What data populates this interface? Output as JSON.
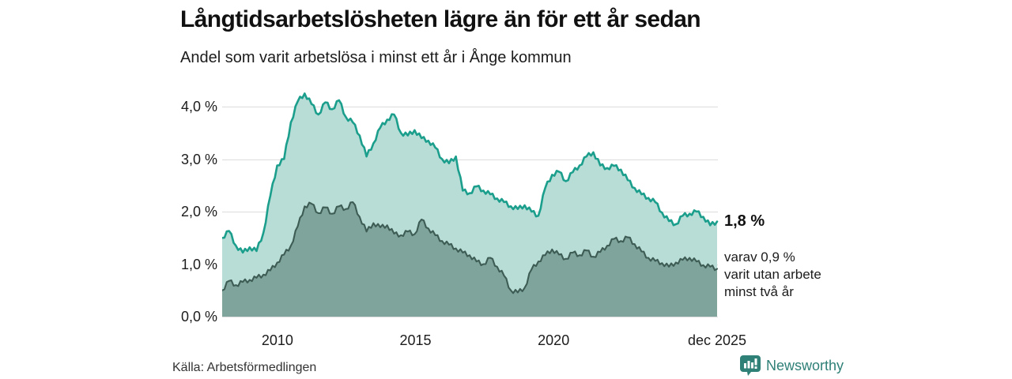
{
  "header": {
    "title": "Långtidsarbetslösheten lägre än för ett år sedan",
    "subtitle": "Andel som varit arbetslösa i minst ett år i Ånge kommun"
  },
  "chart_data": {
    "type": "area",
    "title": "Långtidsarbetslösheten lägre än för ett år sedan",
    "subtitle": "Andel som varit arbetslösa i minst ett år i Ånge kommun",
    "x_range": [
      2008.0,
      2025.92
    ],
    "ylim": [
      0,
      4.4
    ],
    "grid": "horizontal",
    "y_ticks": [
      {
        "value": 0,
        "label": "0,0 %"
      },
      {
        "value": 1,
        "label": "1,0 %"
      },
      {
        "value": 2,
        "label": "2,0 %"
      },
      {
        "value": 3,
        "label": "3,0 %"
      },
      {
        "value": 4,
        "label": "4,0 %"
      }
    ],
    "x_ticks": [
      {
        "value": 2010,
        "label": "2010"
      },
      {
        "value": 2015,
        "label": "2015"
      },
      {
        "value": 2020,
        "label": "2020"
      },
      {
        "value": 2025.92,
        "label": "dec 2025"
      }
    ],
    "series": [
      {
        "name": "Andel arbetslösa minst ett år",
        "line_color": "#1b9e8c",
        "fill_color": "#b8ddd6",
        "line_width": 2.6,
        "latest_value": "1,8 %",
        "values": [
          1.5,
          1.63,
          1.35,
          1.22,
          1.32,
          1.25,
          1.6,
          2.3,
          2.88,
          3.0,
          3.7,
          4.1,
          4.25,
          4.05,
          3.85,
          4.08,
          3.95,
          4.12,
          3.8,
          3.7,
          3.45,
          3.05,
          3.3,
          3.6,
          3.75,
          3.85,
          3.5,
          3.45,
          3.55,
          3.4,
          3.35,
          3.22,
          3.0,
          2.92,
          3.05,
          2.4,
          2.35,
          2.48,
          2.4,
          2.33,
          2.25,
          2.18,
          2.1,
          2.05,
          2.12,
          2.0,
          1.92,
          2.45,
          2.7,
          2.76,
          2.58,
          2.75,
          2.88,
          3.05,
          3.13,
          2.88,
          2.83,
          2.87,
          2.8,
          2.6,
          2.45,
          2.33,
          2.26,
          2.18,
          1.98,
          1.82,
          1.76,
          1.92,
          1.96,
          2.0,
          1.9,
          1.74,
          1.81
        ]
      },
      {
        "name": "Andel utan arbete minst två år",
        "line_color": "#3d5c54",
        "fill_color": "#7ea49b",
        "line_width": 2.1,
        "latest_value": "0,9 %",
        "values": [
          0.5,
          0.68,
          0.6,
          0.66,
          0.7,
          0.74,
          0.8,
          0.88,
          1.03,
          1.18,
          1.35,
          1.72,
          2.1,
          2.15,
          1.97,
          2.08,
          1.96,
          2.1,
          2.05,
          2.18,
          1.9,
          1.62,
          1.78,
          1.7,
          1.74,
          1.58,
          1.55,
          1.62,
          1.57,
          1.85,
          1.68,
          1.55,
          1.44,
          1.37,
          1.3,
          1.22,
          1.17,
          1.05,
          1.0,
          1.12,
          0.95,
          0.78,
          0.5,
          0.46,
          0.55,
          0.9,
          1.05,
          1.17,
          1.28,
          1.18,
          1.1,
          1.22,
          1.17,
          1.26,
          1.14,
          1.23,
          1.35,
          1.48,
          1.44,
          1.51,
          1.38,
          1.24,
          1.12,
          1.06,
          1.02,
          0.95,
          1.03,
          1.08,
          1.12,
          1.05,
          0.98,
          0.95,
          0.91
        ]
      }
    ],
    "annotations": {
      "primary": "1,8 %",
      "secondary_lines": [
        "varav 0,9 %",
        "varit utan arbete",
        "minst två år"
      ]
    }
  },
  "footer": {
    "source": "Källa: Arbetsförmedlingen",
    "brand": "Newsworthy",
    "brand_color": "#2f8077"
  }
}
